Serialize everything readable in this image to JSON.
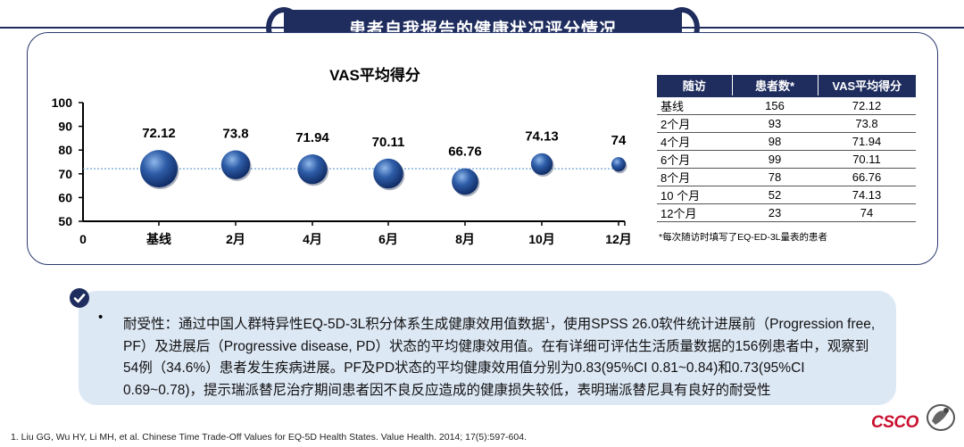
{
  "title": "患者自我报告的健康状况评分情况",
  "chart_data": {
    "type": "scatter",
    "title": "VAS平均得分",
    "categories": [
      "基线",
      "2月",
      "4月",
      "6月",
      "8月",
      "10月",
      "12月"
    ],
    "values": [
      72.12,
      73.8,
      71.94,
      70.11,
      66.76,
      74.13,
      74
    ],
    "value_labels": [
      "72.12",
      "73.8",
      "71.94",
      "70.11",
      "66.76",
      "74.13",
      "74"
    ],
    "sizes": [
      156,
      93,
      98,
      99,
      78,
      52,
      23
    ],
    "y_ticks": [
      "100",
      "90",
      "80",
      "70",
      "60",
      "50"
    ],
    "x_origin_label": "0",
    "ylim": [
      50,
      100
    ],
    "reference_line": 72.12,
    "colors": {
      "bubble": "#2e5da8",
      "bubble_dark": "#0f2a63",
      "reference_line": "#6aa2d8"
    }
  },
  "table": {
    "headers": [
      "随访",
      "患者数*",
      "VAS平均得分"
    ],
    "rows": [
      [
        "基线",
        "156",
        "72.12"
      ],
      [
        "2个月",
        "93",
        "73.8"
      ],
      [
        "4个月",
        "98",
        "71.94"
      ],
      [
        "6个月",
        "99",
        "70.11"
      ],
      [
        "8个月",
        "78",
        "66.76"
      ],
      [
        "10 个月",
        "52",
        "74.13"
      ],
      [
        "12个月",
        "23",
        "74"
      ]
    ],
    "note": "*每次随访时填写了EQ-ED-3L量表的患者"
  },
  "info": {
    "bullet": "•",
    "text_part1": "耐受性：通过中国人群特异性EQ-5D-3L积分体系生成健康效用值数据",
    "sup": "1",
    "text_part2": "，使用SPSS 26.0软件统计进展前（Progression free, PF）及进展后（Progressive disease, PD）状态的平均健康效用值。在有详细可评估生活质量数据的156例患者中，观察到54例（34.6%）患者发生疾病进展。PF及PD状态的平均健康效用值分别为0.83(95%CI 0.81~0.84)和0.73(95%CI 0.69~0.78)，提示瑞派替尼治疗期间患者因不良反应造成的健康损失较低，表明瑞派替尼具有良好的耐受性"
  },
  "footnote": "1.   Liu GG, Wu HY, Li MH, et al. Chinese Time Trade-Off Values for EQ-5D Health States. Value Health. 2014; 17(5):597-604.",
  "logo": {
    "text": "CSCO"
  }
}
